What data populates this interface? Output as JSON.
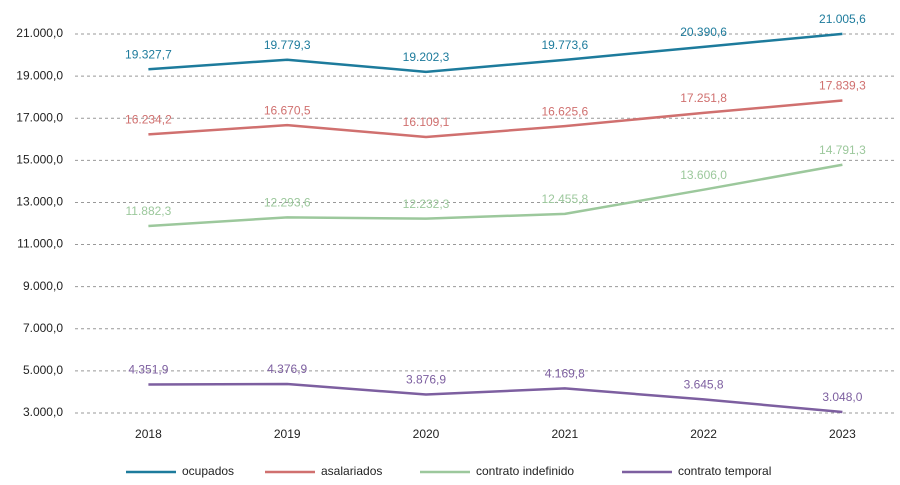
{
  "chart_data": {
    "type": "line",
    "categories": [
      "2018",
      "2019",
      "2020",
      "2021",
      "2022",
      "2023"
    ],
    "series": [
      {
        "name": "ocupados",
        "color": "#1d7b9c",
        "values": [
          19327.7,
          19779.3,
          19202.3,
          19773.6,
          20390.6,
          21005.6
        ],
        "value_labels": [
          "19.327,7",
          "19.779,3",
          "19.202,3",
          "19.773,6",
          "20.390,6",
          "21.005,6"
        ]
      },
      {
        "name": "asalariados",
        "color": "#d0706f",
        "values": [
          16234.2,
          16670.5,
          16109.1,
          16625.6,
          17251.8,
          17839.3
        ],
        "value_labels": [
          "16.234,2",
          "16.670,5",
          "16.109,1",
          "16.625,6",
          "17.251,8",
          "17.839,3"
        ]
      },
      {
        "name": "contrato indefinido",
        "color": "#9cc89c",
        "values": [
          11882.3,
          12293.6,
          12232.3,
          12455.8,
          13606.0,
          14791.3
        ],
        "value_labels": [
          "11.882,3",
          "12.293,6",
          "12.232,3",
          "12.455,8",
          "13.606,0",
          "14.791,3"
        ]
      },
      {
        "name": "contrato temporal",
        "color": "#7d5fa0",
        "values": [
          4351.9,
          4376.9,
          3876.9,
          4169.8,
          3645.8,
          3048.0
        ],
        "value_labels": [
          "4.351,9",
          "4.376,9",
          "3.876,9",
          "4.169,8",
          "3.645,8",
          "3.048,0"
        ]
      }
    ],
    "ylim": [
      3000,
      21000
    ],
    "yticks": [
      {
        "value": 3000,
        "label": "3.000,0"
      },
      {
        "value": 5000,
        "label": "5.000,0"
      },
      {
        "value": 7000,
        "label": "7.000,0"
      },
      {
        "value": 9000,
        "label": "9.000,0"
      },
      {
        "value": 11000,
        "label": "11.000,0"
      },
      {
        "value": 13000,
        "label": "13.000,0"
      },
      {
        "value": 15000,
        "label": "15.000,0"
      },
      {
        "value": 17000,
        "label": "17.000,0"
      },
      {
        "value": 19000,
        "label": "19.000,0"
      },
      {
        "value": 21000,
        "label": "21.000,0"
      }
    ],
    "grid": true,
    "legend": "bottom"
  }
}
